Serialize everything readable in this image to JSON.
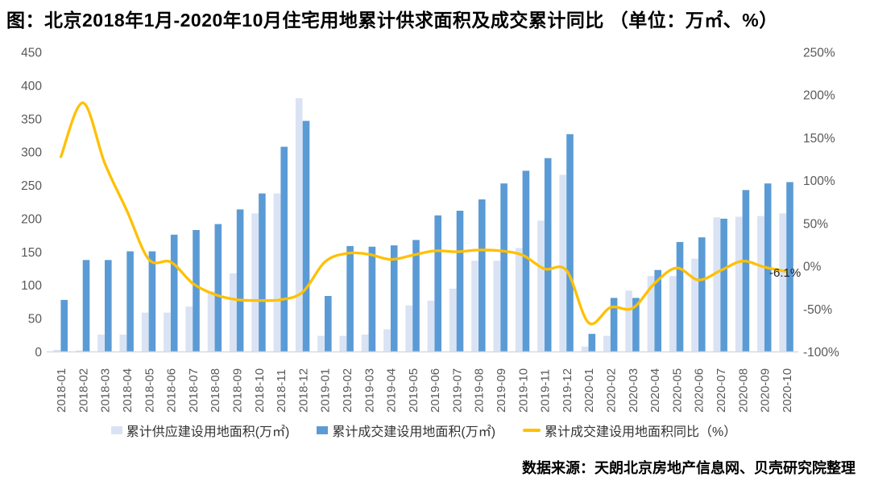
{
  "page": {
    "title": "图：北京2018年1月-2020年10月住宅用地累计供求面积及成交累计同比 （单位：万㎡、%）",
    "source": "数据来源：天朗北京房地产信息网、贝壳研究院整理"
  },
  "annotation": {
    "last_point_label": "-6.1%"
  },
  "legend": {
    "items": [
      {
        "label": "累计供应建设用地面积(万㎡)",
        "marker": "square",
        "color": "#dae3f3"
      },
      {
        "label": "累计成交建设用地面积(万㎡)",
        "marker": "square",
        "color": "#5b9bd5"
      },
      {
        "label": "累计成交建设用地面积同比（%）",
        "marker": "line",
        "color": "#ffc000"
      }
    ]
  },
  "colors": {
    "supply_bar": "#dae3f3",
    "transaction_bar": "#5b9bd5",
    "yoy_line": "#ffc000",
    "axis_text": "#595959",
    "baseline": "#d9d9d9",
    "title_text": "#000000"
  },
  "chart_data": {
    "type": "bar+line",
    "title": "图：北京2018年1月-2020年10月住宅用地累计供求面积及成交累计同比 （单位：万㎡、%）",
    "categories": [
      "2018-01",
      "2018-02",
      "2018-03",
      "2018-04",
      "2018-05",
      "2018-06",
      "2018-07",
      "2018-08",
      "2018-09",
      "2018-10",
      "2018-11",
      "2018-12",
      "2019-01",
      "2019-02",
      "2019-03",
      "2019-04",
      "2019-05",
      "2019-06",
      "2019-07",
      "2019-08",
      "2019-09",
      "2019-10",
      "2019-11",
      "2019-12",
      "2020-01",
      "2020-02",
      "2020-03",
      "2020-04",
      "2020-05",
      "2020-06",
      "2020-07",
      "2020-08",
      "2020-09",
      "2020-10"
    ],
    "series": [
      {
        "name": "累计供应建设用地面积(万㎡)",
        "type": "bar",
        "axis": "left",
        "values": [
          3,
          2,
          26,
          26,
          59,
          59,
          68,
          91,
          118,
          208,
          238,
          381,
          24,
          24,
          26,
          34,
          70,
          77,
          95,
          137,
          137,
          156,
          197,
          266,
          8,
          24,
          92,
          114,
          114,
          140,
          202,
          203,
          204,
          208
        ]
      },
      {
        "name": "累计成交建设用地面积(万㎡)",
        "type": "bar",
        "axis": "left",
        "values": [
          78,
          138,
          138,
          151,
          151,
          176,
          183,
          192,
          214,
          238,
          308,
          347,
          84,
          159,
          158,
          160,
          168,
          205,
          212,
          229,
          253,
          272,
          291,
          327,
          27,
          81,
          81,
          123,
          165,
          172,
          200,
          243,
          253,
          255
        ]
      },
      {
        "name": "累计成交建设用地面积同比（%）",
        "type": "line",
        "axis": "right",
        "values": [
          128,
          191,
          120,
          65,
          8,
          5,
          -20,
          -33,
          -39,
          -40,
          -39,
          -30,
          5,
          15,
          14,
          8,
          13,
          18,
          17,
          19,
          18,
          13,
          -3,
          -5,
          -66,
          -48,
          -49,
          -20,
          -2,
          -16,
          -5,
          6,
          -1,
          -6.1
        ]
      }
    ],
    "left_axis": {
      "min": 0,
      "max": 450,
      "step": 50,
      "suffix": ""
    },
    "right_axis": {
      "min": -100,
      "max": 250,
      "step": 50,
      "suffix": "%"
    },
    "grid": false,
    "legend_position": "bottom",
    "data_label": {
      "series": "累计成交建设用地面积同比（%）",
      "category": "2020-10",
      "text": "-6.1%"
    }
  }
}
